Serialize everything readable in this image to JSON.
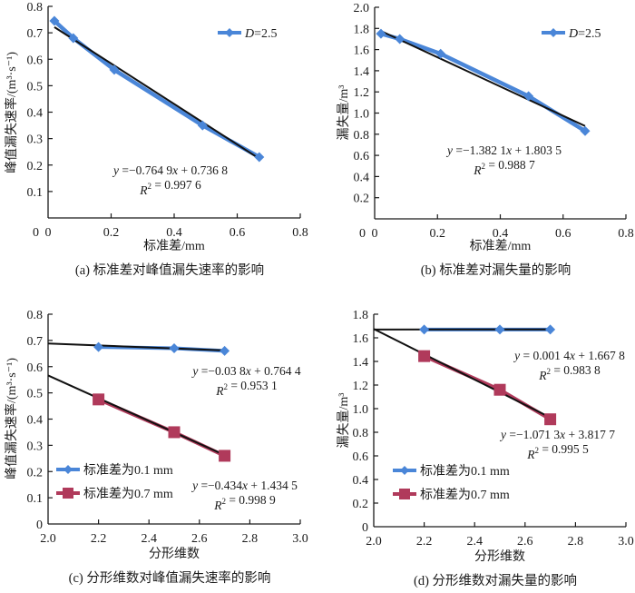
{
  "chart_data": [
    {
      "id": "a",
      "type": "line",
      "caption": "(a) 标准差对峰值漏失速率的影响",
      "xlabel": "标准差/mm",
      "ylabel": "峰值漏失速率/(m³·s⁻¹)",
      "xlim": [
        0,
        0.8
      ],
      "ylim": [
        0,
        0.8
      ],
      "xticks": [
        0,
        0.2,
        0.4,
        0.6,
        0.8
      ],
      "xtick_labels": [
        "0",
        "0.2",
        "0.4",
        "0.6",
        "0.8"
      ],
      "yticks": [
        0.1,
        0.2,
        0.3,
        0.4,
        0.5,
        0.6,
        0.7,
        0.8
      ],
      "ytick_labels": [
        "0.1",
        "0.2",
        "0.3",
        "0.4",
        "0.5",
        "0.6",
        "0.7",
        "0.8"
      ],
      "y0_label": "0",
      "legend_position": "top-right",
      "series": [
        {
          "name": "D=2.5",
          "name_italic_prefix": "D",
          "name_rest": "=2.5",
          "color": "#4a86d8",
          "marker": "diamond",
          "x": [
            0.02,
            0.08,
            0.21,
            0.49,
            0.67
          ],
          "y": [
            0.745,
            0.68,
            0.56,
            0.35,
            0.23
          ],
          "trend": {
            "slope": -0.7649,
            "intercept": 0.7368,
            "x_range": [
              0.02,
              0.67
            ],
            "eq_text": "y =−0.764 9x + 0.736 8",
            "r2_text": "R² = 0.997 6"
          }
        }
      ]
    },
    {
      "id": "b",
      "type": "line",
      "caption": "(b) 标准差对漏失量的影响",
      "xlabel": "标准差/mm",
      "ylabel": "漏失量/m³",
      "xlim": [
        0,
        0.8
      ],
      "ylim": [
        0,
        2.0
      ],
      "xticks": [
        0,
        0.2,
        0.4,
        0.6,
        0.8
      ],
      "xtick_labels": [
        "0",
        "0.2",
        "0.4",
        "0.6",
        "0.8"
      ],
      "yticks": [
        0.2,
        0.4,
        0.6,
        0.8,
        1.0,
        1.2,
        1.4,
        1.6,
        1.8,
        2.0
      ],
      "ytick_labels": [
        "0.2",
        "0.4",
        "0.6",
        "0.8",
        "1.0",
        "1.2",
        "1.4",
        "1.6",
        "1.8",
        "2.0"
      ],
      "y0_label": "0",
      "legend_position": "top-right",
      "series": [
        {
          "name": "D=2.5",
          "name_italic_prefix": "D",
          "name_rest": "=2.5",
          "color": "#4a86d8",
          "marker": "diamond",
          "x": [
            0.02,
            0.08,
            0.21,
            0.49,
            0.67
          ],
          "y": [
            1.75,
            1.7,
            1.56,
            1.16,
            0.83
          ],
          "trend": {
            "slope": -1.3821,
            "intercept": 1.8035,
            "x_range": [
              0.02,
              0.67
            ],
            "eq_text": "y =−1.382 1x + 1.803 5",
            "r2_text": "R² = 0.988 7"
          }
        }
      ]
    },
    {
      "id": "c",
      "type": "line",
      "caption": "(c) 分形维数对峰值漏失速率的影响",
      "xlabel": "分形维数",
      "ylabel": "峰值漏失速率/(m³·s⁻¹)",
      "xlim": [
        2.0,
        3.0
      ],
      "ylim": [
        0,
        0.8
      ],
      "xticks": [
        2.0,
        2.2,
        2.4,
        2.6,
        2.8,
        3.0
      ],
      "xtick_labels": [
        "2.0",
        "2.2",
        "2.4",
        "2.6",
        "2.8",
        "3.0"
      ],
      "yticks": [
        0,
        0.1,
        0.2,
        0.3,
        0.4,
        0.5,
        0.6,
        0.7,
        0.8
      ],
      "ytick_labels": [
        "0",
        "0.1",
        "0.2",
        "0.3",
        "0.4",
        "0.5",
        "0.6",
        "0.7",
        "0.8"
      ],
      "legend_position": "bottom-left",
      "series": [
        {
          "name": "标准差为0.1 mm",
          "color": "#4a86d8",
          "marker": "diamond",
          "x": [
            2.2,
            2.5,
            2.7
          ],
          "y": [
            0.675,
            0.67,
            0.66
          ],
          "trend": {
            "slope": -0.038,
            "intercept": 0.7644,
            "x_range": [
              2.0,
              2.7
            ],
            "eq_text": "y =−0.03 8x + 0.764 4",
            "r2_text": "R² = 0.953 1"
          }
        },
        {
          "name": "标准差为0.7 mm",
          "color": "#b03a5b",
          "marker": "square",
          "x": [
            2.2,
            2.5,
            2.7
          ],
          "y": [
            0.475,
            0.35,
            0.26
          ],
          "trend": {
            "slope": -0.434,
            "intercept": 1.4345,
            "x_range": [
              2.0,
              2.7
            ],
            "eq_text": "y =−0.434x + 1.434 5",
            "r2_text": "R² = 0.998 9"
          }
        }
      ]
    },
    {
      "id": "d",
      "type": "line",
      "caption": "(d) 分形维数对漏失量的影响",
      "xlabel": "分形维数",
      "ylabel": "漏失量/m³",
      "xlim": [
        2.0,
        3.0
      ],
      "ylim": [
        0,
        1.8
      ],
      "xticks": [
        2.0,
        2.2,
        2.4,
        2.6,
        2.8,
        3.0
      ],
      "xtick_labels": [
        "2.0",
        "2.2",
        "2.4",
        "2.6",
        "2.8",
        "3.0"
      ],
      "yticks": [
        0,
        0.2,
        0.4,
        0.6,
        0.8,
        1.0,
        1.2,
        1.4,
        1.6,
        1.8
      ],
      "ytick_labels": [
        "0",
        "0.2",
        "0.4",
        "0.6",
        "0.8",
        "1.0",
        "1.2",
        "1.4",
        "1.6",
        "1.8"
      ],
      "legend_position": "bottom-left",
      "series": [
        {
          "name": "标准差为0.1 mm",
          "color": "#4a86d8",
          "marker": "diamond",
          "x": [
            2.2,
            2.5,
            2.7
          ],
          "y": [
            1.67,
            1.67,
            1.67
          ],
          "trend": {
            "slope": 0.0014,
            "intercept": 1.6678,
            "x_range": [
              2.0,
              2.7
            ],
            "eq_text": "y = 0.001 4x + 1.667 8",
            "r2_text": "R² = 0.983 8"
          }
        },
        {
          "name": "标准差为0.7 mm",
          "color": "#b03a5b",
          "marker": "square",
          "x": [
            2.2,
            2.5,
            2.7
          ],
          "y": [
            1.445,
            1.16,
            0.91
          ],
          "trend": {
            "slope": -1.0713,
            "intercept": 3.8177,
            "x_range": [
              2.0,
              2.7
            ],
            "eq_text": "y =−1.071 3x + 3.817 7",
            "r2_text": "R² = 0.995 5"
          }
        }
      ]
    }
  ]
}
